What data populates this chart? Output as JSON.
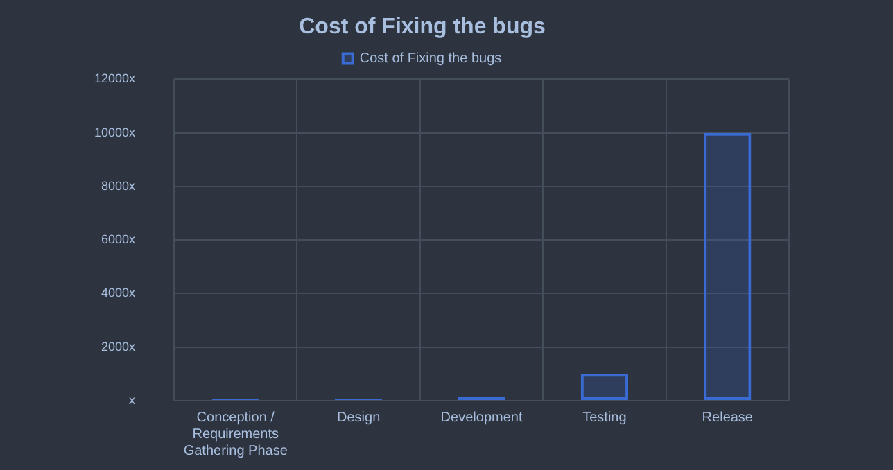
{
  "chart_data": {
    "type": "bar",
    "title": "Cost of Fixing the bugs",
    "categories": [
      [
        "Conception /",
        "Requirements",
        "Gathering Phase"
      ],
      "Design",
      "Development",
      "Testing",
      "Release"
    ],
    "series": [
      {
        "name": "Cost of Fixing the bugs",
        "color": "#3a6bd4",
        "values": [
          50,
          50,
          150,
          1000,
          10000
        ]
      }
    ],
    "ylim": [
      0,
      12000
    ],
    "yticks": [
      {
        "value": 0,
        "label": "x"
      },
      {
        "value": 2000,
        "label": "2000x"
      },
      {
        "value": 4000,
        "label": "4000x"
      },
      {
        "value": 6000,
        "label": "6000x"
      },
      {
        "value": 8000,
        "label": "8000x"
      },
      {
        "value": 10000,
        "label": "10000x"
      },
      {
        "value": 12000,
        "label": "12000x"
      }
    ],
    "grid": true,
    "legend": "top"
  }
}
